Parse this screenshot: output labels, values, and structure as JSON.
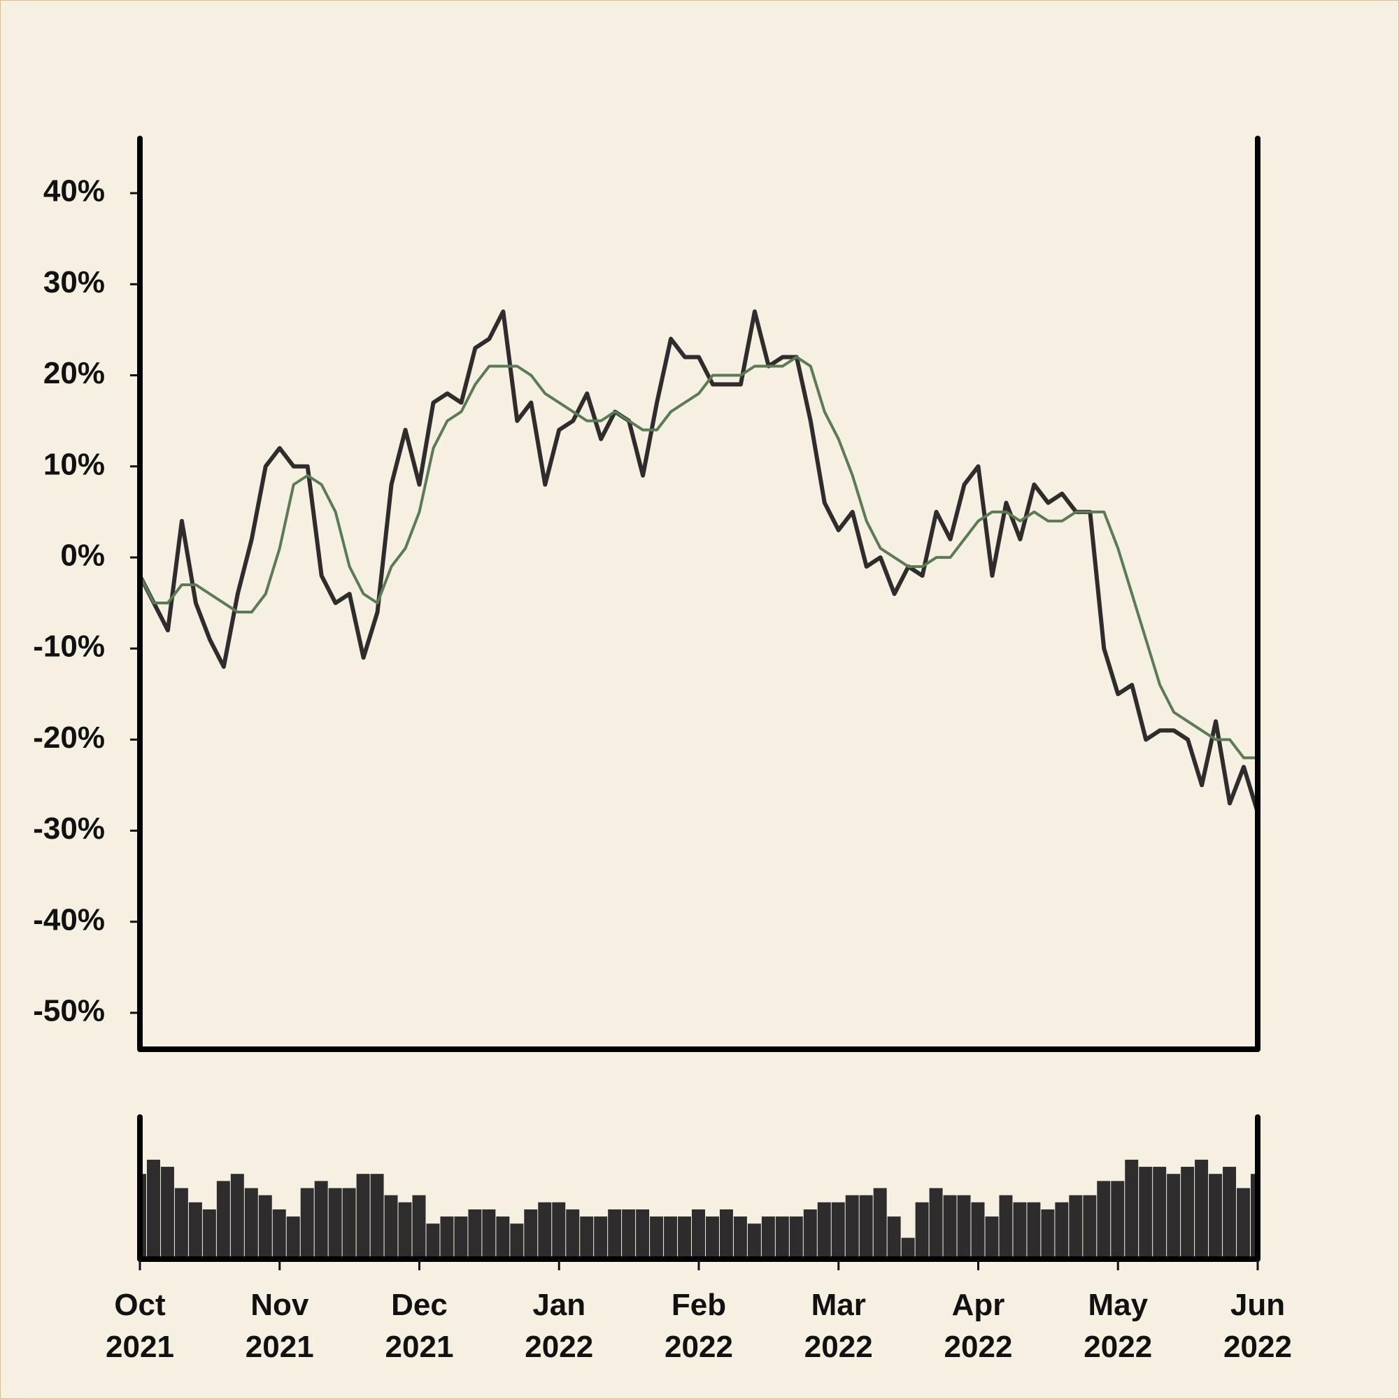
{
  "chart_data": [
    {
      "type": "line",
      "x": [
        0,
        0.1,
        0.2,
        0.3,
        0.4,
        0.5,
        0.6,
        0.7,
        0.8,
        0.9,
        1,
        1.1,
        1.2,
        1.3,
        1.4,
        1.5,
        1.6,
        1.7,
        1.8,
        1.9,
        2,
        2.1,
        2.2,
        2.3,
        2.4,
        2.5,
        2.6,
        2.7,
        2.8,
        2.9,
        3,
        3.1,
        3.2,
        3.3,
        3.4,
        3.5,
        3.6,
        3.7,
        3.8,
        3.9,
        4,
        4.1,
        4.2,
        4.3,
        4.4,
        4.5,
        4.6,
        4.7,
        4.8,
        4.9,
        5,
        5.1,
        5.2,
        5.3,
        5.4,
        5.5,
        5.6,
        5.7,
        5.8,
        5.9,
        6,
        6.1,
        6.2,
        6.3,
        6.4,
        6.5,
        6.6,
        6.7,
        6.8,
        6.9,
        7,
        7.1,
        7.2,
        7.3,
        7.4,
        7.5,
        7.6,
        7.7,
        7.8,
        7.9,
        8
      ],
      "xlim": [
        0,
        8
      ],
      "ylim": [
        -54,
        46
      ],
      "yticks": [
        {
          "value": -50,
          "label": "-50%"
        },
        {
          "value": -40,
          "label": "-40%"
        },
        {
          "value": -30,
          "label": "-30%"
        },
        {
          "value": -20,
          "label": "-20%"
        },
        {
          "value": -10,
          "label": "-10%"
        },
        {
          "value": 0,
          "label": "0%"
        },
        {
          "value": 10,
          "label": "10%"
        },
        {
          "value": 20,
          "label": "20%"
        },
        {
          "value": 30,
          "label": "30%"
        },
        {
          "value": 40,
          "label": "40%"
        }
      ],
      "series": [
        {
          "color": "#2e2c2d",
          "values": [
            -2,
            -5,
            -8,
            4,
            -5,
            -9,
            -12,
            -4,
            2,
            10,
            12,
            10,
            10,
            -2,
            -5,
            -4,
            -11,
            -6,
            8,
            14,
            8,
            17,
            18,
            17,
            23,
            24,
            27,
            15,
            17,
            8,
            14,
            15,
            18,
            13,
            16,
            15,
            9,
            17,
            24,
            22,
            22,
            19,
            19,
            19,
            27,
            21,
            22,
            22,
            15,
            6,
            3,
            5,
            -1,
            0,
            -4,
            -1,
            -2,
            5,
            2,
            8,
            10,
            -2,
            6,
            2,
            8,
            6,
            7,
            5,
            5,
            -10,
            -15,
            -14,
            -20,
            -19,
            -19,
            -20,
            -25,
            -18,
            -27,
            -23,
            -28
          ]
        },
        {
          "color": "#5c7a56",
          "values": [
            -2,
            -5,
            -5,
            -3,
            -3,
            -4,
            -5,
            -6,
            -6,
            -4,
            1,
            8,
            9,
            8,
            5,
            -1,
            -4,
            -5,
            -1,
            1,
            5,
            12,
            15,
            16,
            19,
            21,
            21,
            21,
            20,
            18,
            17,
            16,
            15,
            15,
            16,
            15,
            14,
            14,
            16,
            17,
            18,
            20,
            20,
            20,
            21,
            21,
            21,
            22,
            21,
            16,
            13,
            9,
            4,
            1,
            0,
            -1,
            -1,
            0,
            0,
            2,
            4,
            5,
            5,
            4,
            5,
            4,
            4,
            5,
            5,
            5,
            1,
            -4,
            -9,
            -14,
            -17,
            -18,
            -19,
            -20,
            -20,
            -22,
            -22
          ]
        }
      ]
    },
    {
      "type": "bar",
      "x": [
        0,
        0.1,
        0.2,
        0.3,
        0.4,
        0.5,
        0.6,
        0.7,
        0.8,
        0.9,
        1,
        1.1,
        1.2,
        1.3,
        1.4,
        1.5,
        1.6,
        1.7,
        1.8,
        1.9,
        2,
        2.1,
        2.2,
        2.3,
        2.4,
        2.5,
        2.6,
        2.7,
        2.8,
        2.9,
        3,
        3.1,
        3.2,
        3.3,
        3.4,
        3.5,
        3.6,
        3.7,
        3.8,
        3.9,
        4,
        4.1,
        4.2,
        4.3,
        4.4,
        4.5,
        4.6,
        4.7,
        4.8,
        4.9,
        5,
        5.1,
        5.2,
        5.3,
        5.4,
        5.5,
        5.6,
        5.7,
        5.8,
        5.9,
        6,
        6.1,
        6.2,
        6.3,
        6.4,
        6.5,
        6.6,
        6.7,
        6.8,
        6.9,
        7,
        7.1,
        7.2,
        7.3,
        7.4,
        7.5,
        7.6,
        7.7,
        7.8,
        7.9,
        8
      ],
      "xlim": [
        0,
        8
      ],
      "ylim": [
        0,
        100
      ],
      "xticks": [
        {
          "value": 0,
          "label": "Oct 2021"
        },
        {
          "value": 1,
          "label": "Nov 2021"
        },
        {
          "value": 2,
          "label": "Dec 2021"
        },
        {
          "value": 3,
          "label": "Jan 2022"
        },
        {
          "value": 4,
          "label": "Feb 2022"
        },
        {
          "value": 5,
          "label": "Mar 2022"
        },
        {
          "value": 6,
          "label": "Apr 2022"
        },
        {
          "value": 7,
          "label": "May 2022"
        },
        {
          "value": 8,
          "label": "Jun 2022"
        }
      ],
      "color": "#2e2c2d",
      "values": [
        60,
        70,
        65,
        50,
        40,
        35,
        55,
        60,
        50,
        45,
        35,
        30,
        50,
        55,
        50,
        50,
        60,
        60,
        45,
        40,
        45,
        25,
        30,
        30,
        35,
        35,
        30,
        25,
        35,
        40,
        40,
        35,
        30,
        30,
        35,
        35,
        35,
        30,
        30,
        30,
        35,
        30,
        35,
        30,
        25,
        30,
        30,
        30,
        35,
        40,
        40,
        45,
        45,
        50,
        30,
        15,
        40,
        50,
        45,
        45,
        40,
        30,
        45,
        40,
        40,
        35,
        40,
        45,
        45,
        55,
        55,
        70,
        65,
        65,
        60,
        65,
        70,
        60,
        65,
        50,
        60
      ]
    }
  ]
}
